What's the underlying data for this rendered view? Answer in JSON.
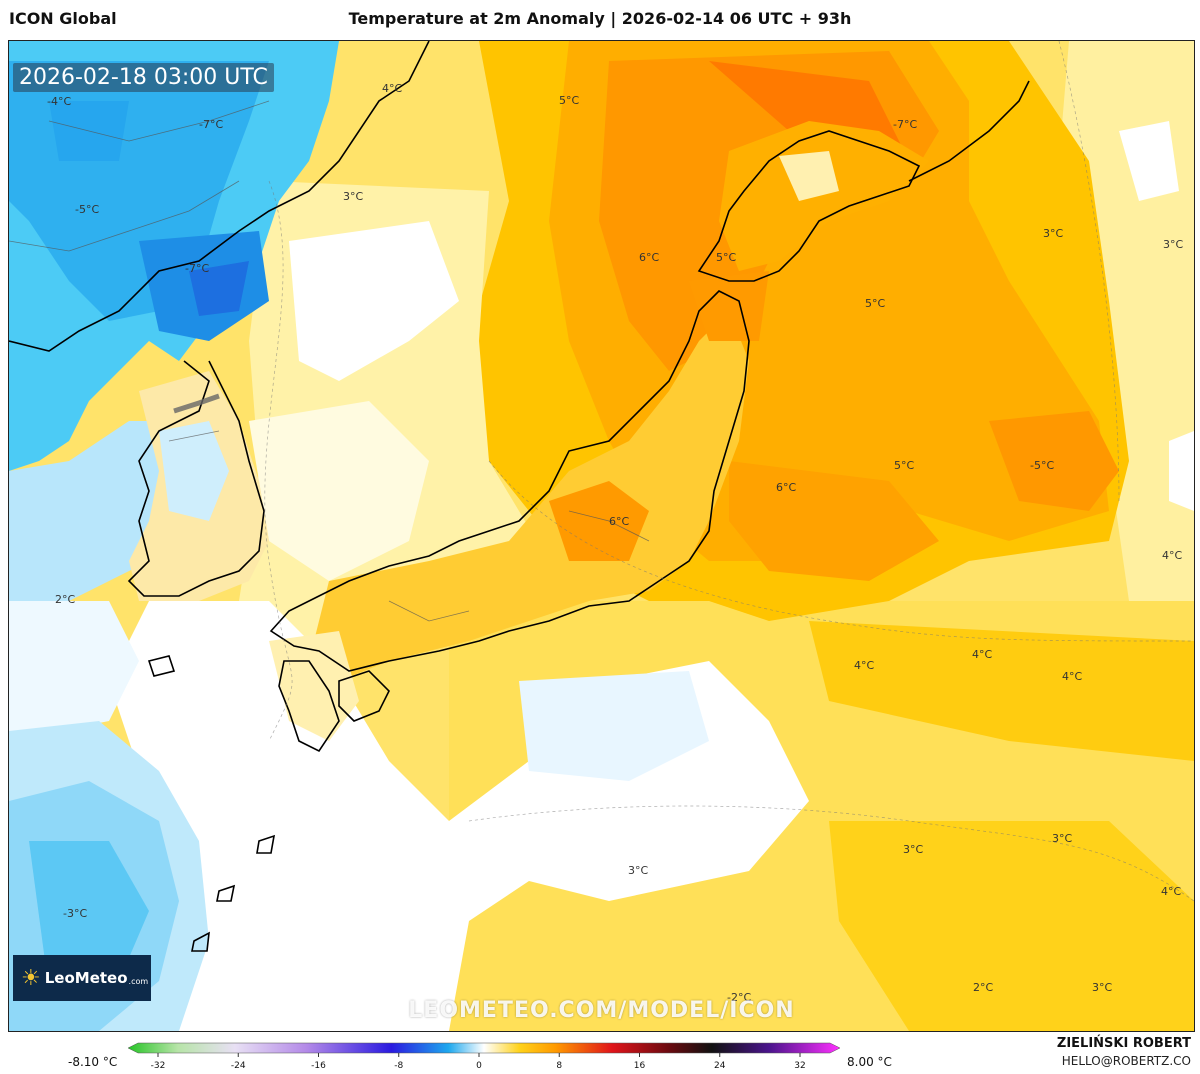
{
  "header": {
    "model": "ICON Global",
    "title": "Temperature at 2m Anomaly | 2026-02-14 06 UTC + 93h"
  },
  "map": {
    "valid_time": "2026-02-18 03:00 UTC",
    "labels": [
      "-4°C",
      "4°C",
      "-7°C",
      "5°C",
      "-5°C",
      "3°C",
      "-7°C",
      "6°C",
      "5°C",
      "5°C",
      "3°C",
      "3°C",
      "6°C",
      "6°C",
      "5°C",
      "-5°C",
      "4°C",
      "2°C",
      "4°C",
      "4°C",
      "4°C",
      "3°C",
      "3°C",
      "3°C",
      "4°C",
      "-3°C",
      "2°C",
      "3°C",
      "-2°C",
      "-7°C"
    ],
    "watermark": "LEOMETEO.COM/MODEL/ICON",
    "logo": {
      "text": "LeoMeteo",
      "suffix": ".com",
      "icon": "sun-icon"
    },
    "colors": {
      "sea_cold": "#1fb6f0",
      "deep_cold": "#2f7de6",
      "neutral": "#ffffff",
      "warm_light": "#fff3b0",
      "warm": "#ffd21a",
      "warmer": "#ffb000",
      "hot": "#ff8a00",
      "coast": "#000000"
    }
  },
  "legend": {
    "min_label": "-8.10 °C",
    "max_label": "8.00 °C",
    "ticks": [
      "-32",
      "-24",
      "-16",
      "-8",
      "0",
      "8",
      "16",
      "24",
      "32"
    ],
    "stops": [
      "#26c426",
      "#b7e4a8",
      "#d7c8f0",
      "#9b6ae0",
      "#1a1ae0",
      "#18a4ee",
      "#ffffff",
      "#ffd21a",
      "#ff7a00",
      "#e0141a",
      "#6a0a10",
      "#111111",
      "#4a148c",
      "#e020e0"
    ]
  },
  "credits": {
    "author": "ZIELIŃSKI ROBERT",
    "email": "HELLO@ROBERTZ.CO"
  }
}
